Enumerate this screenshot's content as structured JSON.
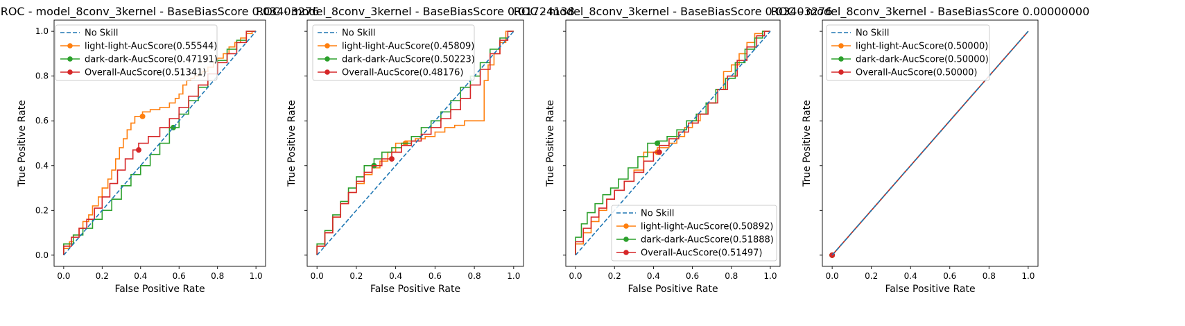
{
  "figure": {
    "background": "#ffffff",
    "colors": {
      "no_skill": "#1f77b4",
      "light_light": "#ff7f0e",
      "dark_dark": "#2ca02c",
      "overall": "#d62728"
    }
  },
  "chart_data": [
    {
      "type": "line",
      "title": "ROC - model_8conv_3kernel - BaseBiasScore 0.03403276",
      "xlabel": "False Positive Rate",
      "ylabel": "True Positive Rate",
      "xlim": [
        -0.05,
        1.05
      ],
      "ylim": [
        -0.05,
        1.05
      ],
      "xticks": [
        0.0,
        0.2,
        0.4,
        0.6,
        0.8,
        1.0
      ],
      "xtick_labels": [
        "0.0",
        "0.2",
        "0.4",
        "0.6",
        "0.8",
        "1.0"
      ],
      "yticks": [
        0.0,
        0.2,
        0.4,
        0.6,
        0.8,
        1.0
      ],
      "ytick_labels": [
        "0.0",
        "0.2",
        "0.4",
        "0.6",
        "0.8",
        "1.0"
      ],
      "show_y_tick_labels": true,
      "grid": false,
      "legend_position": "top-left",
      "series": [
        {
          "name": "No Skill",
          "style": "dashed",
          "color": "#1f77b4",
          "x": [
            0,
            1
          ],
          "y": [
            0,
            1
          ]
        },
        {
          "name": "light-light-AucScore(0.55544)",
          "style": "step",
          "color": "#ff7f0e",
          "marker": [
            0.41,
            0.62
          ],
          "x": [
            0,
            0.03,
            0.05,
            0.08,
            0.1,
            0.13,
            0.15,
            0.18,
            0.2,
            0.23,
            0.25,
            0.27,
            0.29,
            0.31,
            0.33,
            0.35,
            0.37,
            0.39,
            0.41,
            0.45,
            0.5,
            0.55,
            0.58,
            0.6,
            0.62,
            0.64,
            0.66,
            0.68,
            0.7,
            0.72,
            0.75,
            0.78,
            0.8,
            0.83,
            0.86,
            0.89,
            0.92,
            0.95,
            0.98,
            1.0
          ],
          "y": [
            0,
            0.03,
            0.06,
            0.09,
            0.12,
            0.15,
            0.18,
            0.22,
            0.26,
            0.3,
            0.34,
            0.38,
            0.43,
            0.48,
            0.52,
            0.56,
            0.59,
            0.62,
            0.62,
            0.64,
            0.65,
            0.66,
            0.68,
            0.7,
            0.72,
            0.76,
            0.78,
            0.79,
            0.8,
            0.81,
            0.82,
            0.84,
            0.86,
            0.88,
            0.9,
            0.93,
            0.95,
            0.97,
            0.99,
            1.0
          ]
        },
        {
          "name": "dark-dark-AucScore(0.47191)",
          "style": "step",
          "color": "#2ca02c",
          "marker": [
            0.57,
            0.57
          ],
          "x": [
            0,
            0.05,
            0.1,
            0.15,
            0.2,
            0.25,
            0.3,
            0.35,
            0.4,
            0.45,
            0.5,
            0.55,
            0.6,
            0.65,
            0.7,
            0.75,
            0.8,
            0.85,
            0.9,
            0.95,
            1.0
          ],
          "y": [
            0,
            0.05,
            0.09,
            0.12,
            0.16,
            0.2,
            0.25,
            0.31,
            0.36,
            0.4,
            0.45,
            0.5,
            0.57,
            0.63,
            0.69,
            0.75,
            0.81,
            0.87,
            0.92,
            0.96,
            1.0
          ]
        },
        {
          "name": "Overall-AucScore(0.51341)",
          "style": "step",
          "color": "#d62728",
          "marker": [
            0.39,
            0.47
          ],
          "x": [
            0,
            0.04,
            0.08,
            0.12,
            0.16,
            0.2,
            0.24,
            0.28,
            0.32,
            0.36,
            0.39,
            0.44,
            0.5,
            0.55,
            0.6,
            0.65,
            0.7,
            0.75,
            0.8,
            0.85,
            0.9,
            0.95,
            1.0
          ],
          "y": [
            0,
            0.04,
            0.08,
            0.12,
            0.16,
            0.21,
            0.26,
            0.32,
            0.38,
            0.43,
            0.47,
            0.5,
            0.53,
            0.57,
            0.61,
            0.66,
            0.71,
            0.76,
            0.81,
            0.86,
            0.9,
            0.95,
            1.0
          ]
        }
      ]
    },
    {
      "type": "line",
      "title": "ROC - model_8conv_3kernel - BaseBiasScore 0.01724138",
      "xlabel": "False Positive Rate",
      "ylabel": "True Positive Rate",
      "xlim": [
        -0.05,
        1.05
      ],
      "ylim": [
        -0.05,
        1.05
      ],
      "xticks": [
        0.0,
        0.2,
        0.4,
        0.6,
        0.8,
        1.0
      ],
      "xtick_labels": [
        "0.0",
        "0.2",
        "0.4",
        "0.6",
        "0.8",
        "1.0"
      ],
      "yticks": [
        0.0,
        0.2,
        0.4,
        0.6,
        0.8,
        1.0
      ],
      "ytick_labels": [
        "",
        "",
        "",
        "",
        "",
        ""
      ],
      "show_y_tick_labels": false,
      "grid": false,
      "legend_position": "top-left",
      "series": [
        {
          "name": "No Skill",
          "style": "dashed",
          "color": "#1f77b4",
          "x": [
            0,
            1
          ],
          "y": [
            0,
            1
          ]
        },
        {
          "name": "light-light-AucScore(0.45809)",
          "style": "step",
          "color": "#ff7f0e",
          "marker": [
            0.45,
            0.5
          ],
          "x": [
            0,
            0.04,
            0.08,
            0.12,
            0.16,
            0.2,
            0.24,
            0.28,
            0.32,
            0.36,
            0.4,
            0.45,
            0.5,
            0.55,
            0.6,
            0.65,
            0.7,
            0.75,
            0.8,
            0.85,
            0.87,
            0.9,
            0.93,
            0.96,
            1.0
          ],
          "y": [
            0,
            0.04,
            0.1,
            0.17,
            0.23,
            0.28,
            0.32,
            0.36,
            0.39,
            0.42,
            0.46,
            0.5,
            0.51,
            0.52,
            0.53,
            0.55,
            0.57,
            0.58,
            0.6,
            0.6,
            0.78,
            0.85,
            0.9,
            0.95,
            1.0
          ]
        },
        {
          "name": "dark-dark-AucScore(0.50223)",
          "style": "step",
          "color": "#2ca02c",
          "marker": [
            0.29,
            0.4
          ],
          "x": [
            0,
            0.04,
            0.08,
            0.12,
            0.16,
            0.2,
            0.24,
            0.29,
            0.33,
            0.38,
            0.43,
            0.48,
            0.53,
            0.58,
            0.63,
            0.68,
            0.73,
            0.78,
            0.83,
            0.88,
            0.93,
            0.97,
            1.0
          ],
          "y": [
            0,
            0.05,
            0.11,
            0.18,
            0.24,
            0.3,
            0.35,
            0.4,
            0.43,
            0.46,
            0.48,
            0.5,
            0.53,
            0.57,
            0.6,
            0.64,
            0.69,
            0.75,
            0.8,
            0.86,
            0.92,
            0.97,
            1.0
          ]
        },
        {
          "name": "Overall-AucScore(0.48176)",
          "style": "step",
          "color": "#d62728",
          "marker": [
            0.38,
            0.43
          ],
          "x": [
            0,
            0.04,
            0.08,
            0.12,
            0.16,
            0.2,
            0.24,
            0.28,
            0.33,
            0.38,
            0.43,
            0.48,
            0.53,
            0.58,
            0.63,
            0.68,
            0.73,
            0.78,
            0.83,
            0.88,
            0.93,
            0.97,
            1.0
          ],
          "y": [
            0,
            0.04,
            0.1,
            0.17,
            0.23,
            0.28,
            0.33,
            0.37,
            0.4,
            0.43,
            0.46,
            0.49,
            0.51,
            0.54,
            0.57,
            0.61,
            0.65,
            0.7,
            0.76,
            0.83,
            0.9,
            0.96,
            1.0
          ]
        }
      ]
    },
    {
      "type": "line",
      "title": "ROC - model_8conv_3kernel - BaseBiasScore 0.03403276",
      "xlabel": "False Positive Rate",
      "ylabel": "True Positive Rate",
      "xlim": [
        -0.05,
        1.05
      ],
      "ylim": [
        -0.05,
        1.05
      ],
      "xticks": [
        0.0,
        0.2,
        0.4,
        0.6,
        0.8,
        1.0
      ],
      "xtick_labels": [
        "0.0",
        "0.2",
        "0.4",
        "0.6",
        "0.8",
        "1.0"
      ],
      "yticks": [
        0.0,
        0.2,
        0.4,
        0.6,
        0.8,
        1.0
      ],
      "ytick_labels": [
        "",
        "",
        "",
        "",
        "",
        ""
      ],
      "show_y_tick_labels": false,
      "grid": false,
      "legend_position": "bottom-right",
      "series": [
        {
          "name": "No Skill",
          "style": "dashed",
          "color": "#1f77b4",
          "x": [
            0,
            1
          ],
          "y": [
            0,
            1
          ]
        },
        {
          "name": "light-light-AucScore(0.50892)",
          "style": "step",
          "color": "#ff7f0e",
          "marker": [
            0.42,
            0.46
          ],
          "x": [
            0,
            0.04,
            0.08,
            0.12,
            0.16,
            0.2,
            0.25,
            0.3,
            0.35,
            0.42,
            0.48,
            0.52,
            0.56,
            0.6,
            0.64,
            0.68,
            0.72,
            0.76,
            0.8,
            0.84,
            0.88,
            0.92,
            0.96,
            1.0
          ],
          "y": [
            0,
            0.05,
            0.1,
            0.15,
            0.2,
            0.25,
            0.29,
            0.33,
            0.38,
            0.46,
            0.48,
            0.5,
            0.53,
            0.57,
            0.6,
            0.63,
            0.68,
            0.74,
            0.82,
            0.85,
            0.9,
            0.95,
            0.99,
            1.0
          ]
        },
        {
          "name": "dark-dark-AucScore(0.51888)",
          "style": "step",
          "color": "#2ca02c",
          "marker": [
            0.42,
            0.5
          ],
          "x": [
            0,
            0.03,
            0.06,
            0.1,
            0.14,
            0.18,
            0.22,
            0.27,
            0.32,
            0.37,
            0.42,
            0.47,
            0.52,
            0.57,
            0.62,
            0.67,
            0.72,
            0.77,
            0.82,
            0.87,
            0.92,
            0.96,
            1.0
          ],
          "y": [
            0,
            0.08,
            0.14,
            0.19,
            0.23,
            0.27,
            0.3,
            0.34,
            0.39,
            0.44,
            0.5,
            0.51,
            0.53,
            0.56,
            0.6,
            0.63,
            0.68,
            0.74,
            0.79,
            0.86,
            0.92,
            0.97,
            1.0
          ]
        },
        {
          "name": "Overall-AucScore(0.51497)",
          "style": "step",
          "color": "#d62728",
          "marker": [
            0.43,
            0.46
          ],
          "x": [
            0,
            0.04,
            0.08,
            0.12,
            0.16,
            0.2,
            0.25,
            0.3,
            0.35,
            0.4,
            0.43,
            0.48,
            0.53,
            0.58,
            0.63,
            0.68,
            0.73,
            0.78,
            0.83,
            0.88,
            0.93,
            0.97,
            1.0
          ],
          "y": [
            0,
            0.06,
            0.12,
            0.17,
            0.21,
            0.25,
            0.29,
            0.33,
            0.37,
            0.42,
            0.46,
            0.49,
            0.52,
            0.55,
            0.59,
            0.63,
            0.68,
            0.74,
            0.8,
            0.87,
            0.93,
            0.98,
            1.0
          ]
        }
      ]
    },
    {
      "type": "line",
      "title": "ROC - model_8conv_3kernel - BaseBiasScore 0.00000000",
      "xlabel": "False Positive Rate",
      "ylabel": "True Positive Rate",
      "xlim": [
        -0.05,
        1.05
      ],
      "ylim": [
        -0.05,
        1.05
      ],
      "xticks": [
        0.0,
        0.2,
        0.4,
        0.6,
        0.8,
        1.0
      ],
      "xtick_labels": [
        "0.0",
        "0.2",
        "0.4",
        "0.6",
        "0.8",
        "1.0"
      ],
      "yticks": [
        0.0,
        0.2,
        0.4,
        0.6,
        0.8,
        1.0
      ],
      "ytick_labels": [
        "",
        "",
        "",
        "",
        "",
        ""
      ],
      "show_y_tick_labels": false,
      "grid": false,
      "legend_position": "top-left",
      "series": [
        {
          "name": "No Skill",
          "style": "dashed",
          "color": "#1f77b4",
          "x": [
            0,
            1
          ],
          "y": [
            0,
            1
          ]
        },
        {
          "name": "light-light-AucScore(0.50000)",
          "style": "step",
          "color": "#ff7f0e",
          "marker": [
            0,
            0
          ],
          "x": [
            0,
            1
          ],
          "y": [
            0,
            1
          ]
        },
        {
          "name": "dark-dark-AucScore(0.50000)",
          "style": "step",
          "color": "#2ca02c",
          "marker": [
            0,
            0
          ],
          "x": [
            0,
            1
          ],
          "y": [
            0,
            1
          ]
        },
        {
          "name": "Overall-AucScore(0.50000)",
          "style": "step",
          "color": "#d62728",
          "marker": [
            0,
            0
          ],
          "x": [
            0,
            1
          ],
          "y": [
            0,
            1
          ]
        }
      ]
    }
  ]
}
